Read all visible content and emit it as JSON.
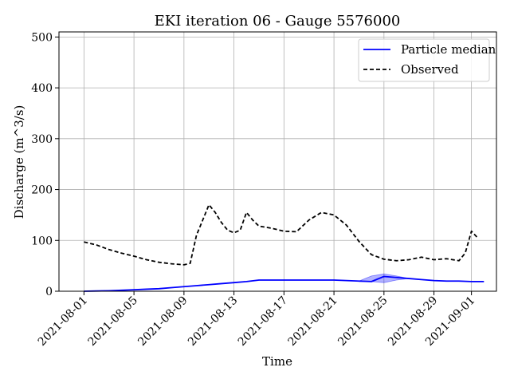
{
  "chart_data": {
    "type": "line",
    "title": "EKI iteration 06 - Gauge 5576000",
    "xlabel": "Time",
    "ylabel": "Discharge (m^3/s)",
    "grid": true,
    "legend_position": "top-right",
    "xlim": [
      "2021-07-30",
      "2021-09-03"
    ],
    "ylim": [
      0,
      510
    ],
    "x_ticks": [
      "2021-08-01",
      "2021-08-05",
      "2021-08-09",
      "2021-08-13",
      "2021-08-17",
      "2021-08-21",
      "2021-08-25",
      "2021-08-29",
      "2021-09-01"
    ],
    "y_ticks": [
      0,
      100,
      200,
      300,
      400,
      500
    ],
    "colors": {
      "median": "#0000ff",
      "band": "#0000ff",
      "observed": "#000000",
      "grid": "#b0b0b0"
    },
    "series": [
      {
        "name": "Particle median",
        "style": "solid",
        "x": [
          "2021-08-01",
          "2021-08-02",
          "2021-08-03",
          "2021-08-04",
          "2021-08-05",
          "2021-08-06",
          "2021-08-07",
          "2021-08-08",
          "2021-08-09",
          "2021-08-10",
          "2021-08-11",
          "2021-08-12",
          "2021-08-13",
          "2021-08-14",
          "2021-08-15",
          "2021-08-16",
          "2021-08-17",
          "2021-08-18",
          "2021-08-19",
          "2021-08-20",
          "2021-08-21",
          "2021-08-22",
          "2021-08-23",
          "2021-08-24",
          "2021-08-25",
          "2021-08-26",
          "2021-08-27",
          "2021-08-28",
          "2021-08-29",
          "2021-08-30",
          "2021-08-31",
          "2021-09-01",
          "2021-09-02"
        ],
        "y": [
          0,
          0.5,
          1,
          2,
          3,
          4,
          5,
          7,
          9,
          11,
          13,
          15,
          17,
          19,
          22,
          22,
          22,
          22,
          22,
          22,
          22,
          21,
          20,
          19,
          29,
          27,
          25,
          23,
          21,
          20,
          20,
          19,
          19
        ]
      },
      {
        "name": "Observed",
        "style": "dashed",
        "x": [
          "2021-08-01",
          "2021-08-02",
          "2021-08-03",
          "2021-08-04",
          "2021-08-05",
          "2021-08-06",
          "2021-08-07",
          "2021-08-08",
          "2021-08-09",
          "2021-08-09 12:00",
          "2021-08-10",
          "2021-08-10 12:00",
          "2021-08-11",
          "2021-08-11 12:00",
          "2021-08-12",
          "2021-08-12 12:00",
          "2021-08-13",
          "2021-08-13 12:00",
          "2021-08-14",
          "2021-08-14 12:00",
          "2021-08-15",
          "2021-08-16",
          "2021-08-17",
          "2021-08-18",
          "2021-08-19",
          "2021-08-20",
          "2021-08-21",
          "2021-08-22",
          "2021-08-23",
          "2021-08-24",
          "2021-08-25",
          "2021-08-26",
          "2021-08-27",
          "2021-08-28",
          "2021-08-29",
          "2021-08-30",
          "2021-08-31",
          "2021-08-31 12:00",
          "2021-09-01",
          "2021-09-01 12:00"
        ],
        "y": [
          97,
          91,
          82,
          75,
          69,
          62,
          57,
          54,
          52,
          55,
          110,
          140,
          170,
          155,
          135,
          120,
          115,
          120,
          155,
          140,
          128,
          124,
          118,
          117,
          140,
          155,
          150,
          130,
          98,
          72,
          63,
          60,
          62,
          67,
          62,
          64,
          60,
          75,
          118,
          105
        ]
      }
    ],
    "band": {
      "series": "Particle median",
      "x": [
        "2021-08-23",
        "2021-08-24",
        "2021-08-25",
        "2021-08-26",
        "2021-08-27"
      ],
      "lower": [
        19,
        19,
        17,
        22,
        25
      ],
      "upper": [
        20,
        30,
        34,
        30,
        25
      ]
    }
  }
}
